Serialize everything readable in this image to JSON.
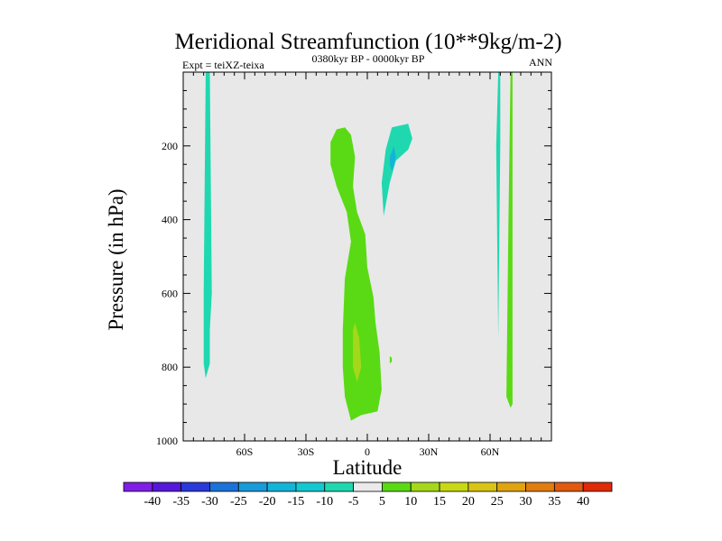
{
  "chart_data": {
    "type": "contour",
    "title": "Meridional Streamfunction (10**9kg/m-2)",
    "left_label": "Expt = teiXZ-teixa",
    "center_label": "0380kyr BP - 0000kyr BP",
    "right_label": "ANN",
    "xlabel": "Latitude",
    "ylabel": "Pressure (in hPa)",
    "xlim": [
      -90,
      90
    ],
    "ylim": [
      1000,
      0
    ],
    "x_ticks": [
      {
        "value": -60,
        "label": "60S"
      },
      {
        "value": -30,
        "label": "30S"
      },
      {
        "value": 0,
        "label": "0"
      },
      {
        "value": 30,
        "label": "30N"
      },
      {
        "value": 60,
        "label": "60N"
      }
    ],
    "y_ticks": [
      {
        "value": 200,
        "label": "200"
      },
      {
        "value": 400,
        "label": "400"
      },
      {
        "value": 600,
        "label": "600"
      },
      {
        "value": 800,
        "label": "800"
      },
      {
        "value": 1000,
        "label": "1000"
      }
    ],
    "background_level": "-5 to 5",
    "regions": [
      {
        "name": "southern-high-lat-negative-cell",
        "range": "-10 to -5",
        "color": "#1fd8b0",
        "outline": [
          [
            -79,
            0
          ],
          [
            -77,
            0
          ],
          [
            -76,
            600
          ],
          [
            -77,
            700
          ],
          [
            -77,
            790
          ],
          [
            -79,
            830
          ],
          [
            -80,
            790
          ],
          [
            -80,
            600
          ],
          [
            -79,
            0
          ]
        ]
      },
      {
        "name": "tropical-positive-upper-cell",
        "range": "5 to 10",
        "color": "#5ada14",
        "outline": [
          [
            -15,
            155
          ],
          [
            -11,
            150
          ],
          [
            -8,
            170
          ],
          [
            -6,
            230
          ],
          [
            -7,
            310
          ],
          [
            -5,
            380
          ],
          [
            -1,
            440
          ],
          [
            0,
            530
          ],
          [
            3,
            610
          ],
          [
            4,
            680
          ],
          [
            6,
            760
          ],
          [
            7,
            860
          ],
          [
            5,
            920
          ],
          [
            -3,
            930
          ],
          [
            -8,
            945
          ],
          [
            -11,
            880
          ],
          [
            -12,
            800
          ],
          [
            -12,
            700
          ],
          [
            -11,
            560
          ],
          [
            -8,
            460
          ],
          [
            -10,
            380
          ],
          [
            -15,
            310
          ],
          [
            -18,
            250
          ],
          [
            -18,
            190
          ],
          [
            -15,
            155
          ]
        ]
      },
      {
        "name": "tropical-positive-core",
        "range": "10 to 15",
        "color": "#a5d81a",
        "outline": [
          [
            -6,
            680
          ],
          [
            -4,
            720
          ],
          [
            -3,
            800
          ],
          [
            -5,
            840
          ],
          [
            -7,
            800
          ],
          [
            -7,
            700
          ],
          [
            -6,
            680
          ]
        ]
      },
      {
        "name": "northern-tropical-negative-cell",
        "range": "-10 to -5",
        "color": "#1fd8b0",
        "outline": [
          [
            9,
            210
          ],
          [
            12,
            150
          ],
          [
            20,
            140
          ],
          [
            22,
            180
          ],
          [
            20,
            210
          ],
          [
            14,
            240
          ],
          [
            11,
            300
          ],
          [
            8,
            390
          ],
          [
            7,
            300
          ],
          [
            9,
            210
          ]
        ]
      },
      {
        "name": "northern-tropical-negative-core",
        "range": "-15 to -10",
        "color": "#14b4d8",
        "outline": [
          [
            11,
            230
          ],
          [
            13,
            200
          ],
          [
            14,
            230
          ],
          [
            12,
            270
          ],
          [
            11,
            250
          ],
          [
            11,
            230
          ]
        ]
      },
      {
        "name": "northern-high-lat-negative-strip",
        "range": "-10 to -5",
        "color": "#1fd8b0",
        "outline": [
          [
            64,
            0
          ],
          [
            65,
            0
          ],
          [
            65,
            200
          ],
          [
            64,
            720
          ],
          [
            63,
            200
          ],
          [
            64,
            0
          ]
        ]
      },
      {
        "name": "northern-high-lat-positive-strip",
        "range": "5 to 10",
        "color": "#5ada14",
        "outline": [
          [
            70,
            0
          ],
          [
            71,
            0
          ],
          [
            71,
            900
          ],
          [
            70,
            910
          ],
          [
            68,
            880
          ],
          [
            69,
            400
          ],
          [
            70,
            0
          ]
        ]
      },
      {
        "name": "small-positive-speck",
        "range": "5 to 10",
        "color": "#5ada14",
        "outline": [
          [
            11,
            770
          ],
          [
            12,
            775
          ],
          [
            12,
            785
          ],
          [
            11,
            790
          ],
          [
            11,
            770
          ]
        ]
      }
    ],
    "colorbar": {
      "colors": [
        "#7f1fe6",
        "#5518d8",
        "#2a3ad8",
        "#1c72d8",
        "#1a9ad8",
        "#14b4d8",
        "#14c8d0",
        "#1fd8b0",
        "#eaeaea",
        "#5ada14",
        "#a5d81a",
        "#c8d814",
        "#d8c414",
        "#e0a410",
        "#e07c10",
        "#e05a10",
        "#e02a08"
      ],
      "labels": [
        "-40",
        "-35",
        "-30",
        "-25",
        "-20",
        "-15",
        "-10",
        "-5",
        "5",
        "10",
        "15",
        "20",
        "25",
        "30",
        "35",
        "40"
      ]
    }
  }
}
